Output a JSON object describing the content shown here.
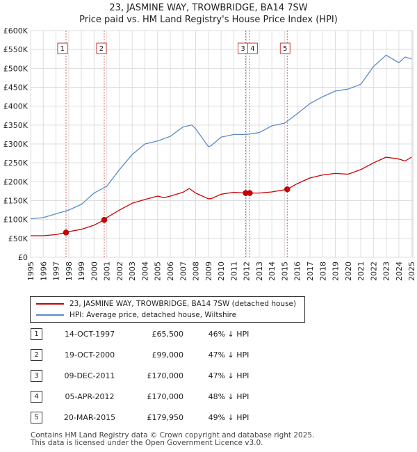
{
  "header": {
    "title_line1": "23, JASMINE WAY, TROWBRIDGE, BA14 7SW",
    "title_line2": "Price paid vs. HM Land Registry's House Price Index (HPI)"
  },
  "legend": {
    "series1": "23, JASMINE WAY, TROWBRIDGE, BA14 7SW (detached house)",
    "series2": "HPI: Average price, detached house, Wiltshire"
  },
  "sales": [
    {
      "num": "1",
      "date": "14-OCT-1997",
      "price": "£65,500",
      "hpi": "46% ↓ HPI"
    },
    {
      "num": "2",
      "date": "19-OCT-2000",
      "price": "£99,000",
      "hpi": "47% ↓ HPI"
    },
    {
      "num": "3",
      "date": "09-DEC-2011",
      "price": "£170,000",
      "hpi": "47% ↓ HPI"
    },
    {
      "num": "4",
      "date": "05-APR-2012",
      "price": "£170,000",
      "hpi": "48% ↓ HPI"
    },
    {
      "num": "5",
      "date": "20-MAR-2015",
      "price": "£179,950",
      "hpi": "49% ↓ HPI"
    }
  ],
  "footer": {
    "line1": "Contains HM Land Registry data © Crown copyright and database right 2025.",
    "line2": "This data is licensed under the Open Government Licence v3.0."
  },
  "colors": {
    "property": "#cc0000",
    "hpi": "#5b8ac6",
    "marker_line": "#e06060",
    "grid": "#dddddd"
  },
  "chart_data": {
    "type": "line",
    "xlim": [
      1995,
      2025.1
    ],
    "ylim": [
      0,
      600000
    ],
    "x_ticks": [
      1995,
      1996,
      1997,
      1998,
      1999,
      2000,
      2001,
      2002,
      2003,
      2004,
      2005,
      2006,
      2007,
      2008,
      2009,
      2010,
      2011,
      2012,
      2013,
      2014,
      2015,
      2016,
      2017,
      2018,
      2019,
      2020,
      2021,
      2022,
      2023,
      2024,
      2025
    ],
    "y_ticks": [
      {
        "value": 0,
        "label": "£0"
      },
      {
        "value": 50000,
        "label": "£50K"
      },
      {
        "value": 100000,
        "label": "£100K"
      },
      {
        "value": 150000,
        "label": "£150K"
      },
      {
        "value": 200000,
        "label": "£200K"
      },
      {
        "value": 250000,
        "label": "£250K"
      },
      {
        "value": 300000,
        "label": "£300K"
      },
      {
        "value": 350000,
        "label": "£350K"
      },
      {
        "value": 400000,
        "label": "£400K"
      },
      {
        "value": 450000,
        "label": "£450K"
      },
      {
        "value": 500000,
        "label": "£500K"
      },
      {
        "value": 550000,
        "label": "£550K"
      },
      {
        "value": 600000,
        "label": "£600K"
      }
    ],
    "grid": true,
    "series": [
      {
        "name": "23, JASMINE WAY, TROWBRIDGE, BA14 7SW (detached house)",
        "x": [
          1995,
          1996,
          1997,
          1997.79,
          1998,
          1999,
          2000,
          2000.8,
          2001,
          2002,
          2003,
          2004,
          2005,
          2005.5,
          2006,
          2007,
          2007.5,
          2008,
          2009,
          2009.2,
          2010,
          2011,
          2011.94,
          2012.26,
          2013,
          2014,
          2015.21,
          2016,
          2017,
          2018,
          2019,
          2020,
          2021,
          2022,
          2023,
          2024,
          2024.5,
          2025
        ],
        "y": [
          57000,
          57000,
          60000,
          65500,
          68000,
          74000,
          85000,
          99000,
          105000,
          125000,
          143000,
          153000,
          162000,
          158000,
          162000,
          172000,
          182000,
          170000,
          155000,
          155000,
          167000,
          172000,
          170000,
          170000,
          170000,
          173000,
          179950,
          195000,
          210000,
          218000,
          222000,
          220000,
          232000,
          250000,
          265000,
          260000,
          255000,
          265000
        ]
      },
      {
        "name": "HPI: Average price, detached house, Wiltshire",
        "x": [
          1995,
          1996,
          1997,
          1998,
          1999,
          2000,
          2001,
          2002,
          2003,
          2004,
          2005,
          2006,
          2007,
          2007.7,
          2008,
          2009,
          2009.2,
          2010,
          2011,
          2012,
          2013,
          2014,
          2015,
          2016,
          2017,
          2018,
          2019,
          2020,
          2021,
          2022,
          2023,
          2024,
          2024.5,
          2025
        ],
        "y": [
          102000,
          105000,
          115000,
          125000,
          140000,
          170000,
          188000,
          232000,
          272000,
          300000,
          308000,
          320000,
          345000,
          350000,
          340000,
          293000,
          295000,
          318000,
          325000,
          325000,
          330000,
          348000,
          355000,
          380000,
          407000,
          425000,
          440000,
          445000,
          458000,
          505000,
          535000,
          515000,
          530000,
          525000
        ]
      }
    ],
    "sale_markers": [
      {
        "label": "1",
        "x": 1997.79,
        "y": 65500
      },
      {
        "label": "2",
        "x": 2000.8,
        "y": 99000
      },
      {
        "label": "3",
        "x": 2011.94,
        "y": 170000
      },
      {
        "label": "4",
        "x": 2012.26,
        "y": 170000
      },
      {
        "label": "5",
        "x": 2015.21,
        "y": 179950
      }
    ]
  }
}
